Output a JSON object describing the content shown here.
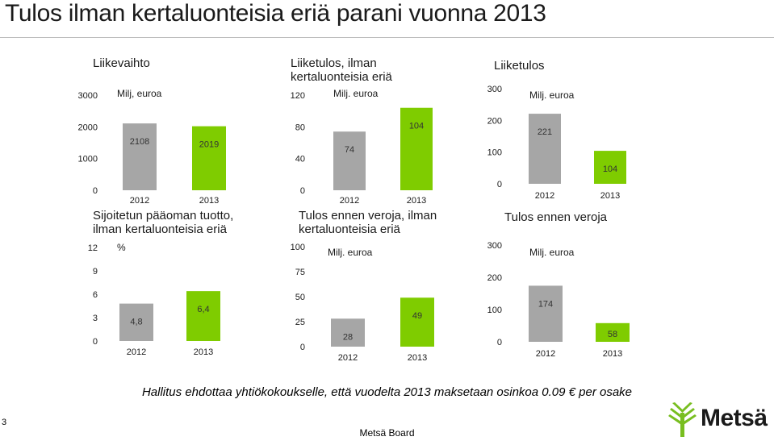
{
  "page": {
    "title": "Tulos ilman kertaluonteisia eriä parani vuonna 2013",
    "footnote": "Hallitus ehdottaa yhtiökokoukselle, että vuodelta 2013 maksetaan osinkoa 0.09 € per osake",
    "page_number": "3",
    "brand_footer": "Metsä Board",
    "logo_text": "Metsä"
  },
  "colors": {
    "bar_2012": "#a6a6a6",
    "bar_2013": "#7fcc00",
    "logo_green": "#78be20"
  },
  "chart_data": [
    {
      "type": "bar",
      "title": "Liikevaihto",
      "unit": "Milj, euroa",
      "categories": [
        "2012",
        "2013"
      ],
      "values": [
        2108,
        2019
      ],
      "value_labels": [
        "2108",
        "2019"
      ],
      "ylim": [
        0,
        3000
      ],
      "yticks": [
        "0",
        "1000",
        "2000",
        "3000"
      ]
    },
    {
      "type": "bar",
      "title": "Liiketulos, ilman kertaluonteisia eriä",
      "unit": "Milj. euroa",
      "categories": [
        "2012",
        "2013"
      ],
      "values": [
        74,
        104
      ],
      "value_labels": [
        "74",
        "104"
      ],
      "ylim": [
        0,
        120
      ],
      "yticks": [
        "0",
        "40",
        "80",
        "120"
      ]
    },
    {
      "type": "bar",
      "title": "Liiketulos",
      "unit": "Milj. euroa",
      "categories": [
        "2012",
        "2013"
      ],
      "values": [
        221,
        104
      ],
      "value_labels": [
        "221",
        "104"
      ],
      "ylim": [
        0,
        300
      ],
      "yticks": [
        "0",
        "100",
        "200",
        "300"
      ]
    },
    {
      "type": "bar",
      "title": "Sijoitetun pääoman tuotto, ilman kertaluonteisia eriä",
      "unit": "%",
      "categories": [
        "2012",
        "2013"
      ],
      "values": [
        4.8,
        6.4
      ],
      "value_labels": [
        "4,8",
        "6,4"
      ],
      "ylim": [
        0,
        12
      ],
      "yticks": [
        "0",
        "3",
        "6",
        "9",
        "12"
      ]
    },
    {
      "type": "bar",
      "title": "Tulos ennen veroja, ilman kertaluonteisia eriä",
      "unit": "Milj. euroa",
      "categories": [
        "2012",
        "2013"
      ],
      "values": [
        28,
        49
      ],
      "value_labels": [
        "28",
        "49"
      ],
      "ylim": [
        0,
        100
      ],
      "yticks": [
        "0",
        "25",
        "50",
        "75",
        "100"
      ]
    },
    {
      "type": "bar",
      "title": "Tulos ennen veroja",
      "unit": "Milj. euroa",
      "categories": [
        "2012",
        "2013"
      ],
      "values": [
        174,
        58
      ],
      "value_labels": [
        "174",
        "58"
      ],
      "ylim": [
        0,
        300
      ],
      "yticks": [
        "0",
        "100",
        "200",
        "300"
      ]
    }
  ]
}
